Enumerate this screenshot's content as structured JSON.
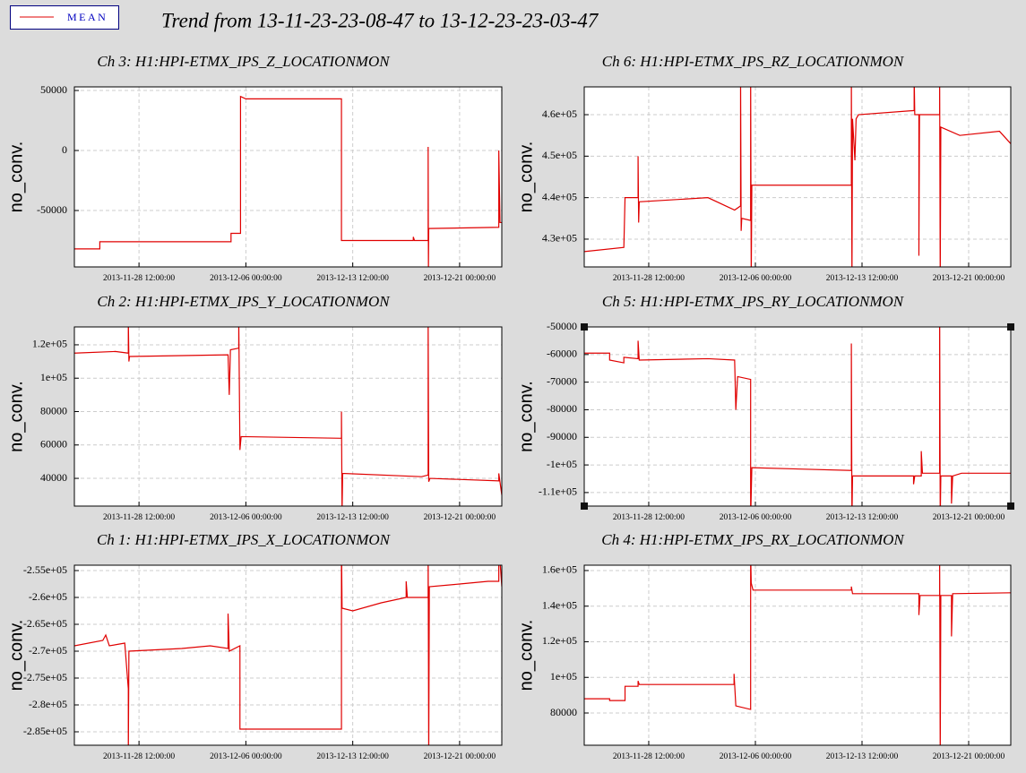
{
  "title": "Trend from 13-11-23-23-08-47 to 13-12-23-23-03-47",
  "chart_data": [
    {
      "type": "line",
      "title": "Ch 3: H1:HPI-ETMX_IPS_Z_LOCATIONMON",
      "ylabel": "no_conv.",
      "grid": true,
      "xlim": [
        "2013-11-23 23:08:47",
        "2013-12-23 23:03:47"
      ],
      "xticks": [
        "2013-11-28 12:00:00",
        "2013-12-06 00:00:00",
        "2013-12-13 12:00:00",
        "2013-12-21 00:00:00"
      ],
      "ylim": [
        -97000,
        53000
      ],
      "yticks": [
        50000,
        0,
        -50000
      ],
      "x": [
        "2013-11-23 23:08:47",
        "2013-11-25 18:00:00",
        "2013-11-25 18:00:00",
        "2013-12-04 23:00:00",
        "2013-12-04 23:00:00",
        "2013-12-05 15:00:00",
        "2013-12-05 15:00:00",
        "2013-12-06 00:00:00",
        "2013-12-12 17:00:00",
        "2013-12-12 17:00:00",
        "2013-12-17 18:00:00",
        "2013-12-17 18:00:00",
        "2013-12-17 20:00:00",
        "2013-12-18 19:00:00",
        "2013-12-18 19:00:00",
        "2013-12-18 19:30:00",
        "2013-12-18 20:00:00",
        "2013-12-23 18:00:00",
        "2013-12-23 18:00:00",
        "2013-12-23 20:00:00",
        "2013-12-23 23:03:47"
      ],
      "series": [
        {
          "name": "MEAN",
          "color": "#e00000",
          "values": [
            -82000,
            -82000,
            -76000,
            -76000,
            -69000,
            -69000,
            45000,
            43000,
            43000,
            -75000,
            -75000,
            -72000,
            -75000,
            -75000,
            3000,
            -100000,
            -65000,
            -64000,
            0,
            -60000,
            -60000
          ]
        }
      ]
    },
    {
      "type": "line",
      "title": "Ch 6: H1:HPI-ETMX_IPS_RZ_LOCATIONMON",
      "ylabel": "no_conv.",
      "grid": true,
      "xlim": [
        "2013-11-23 23:08:47",
        "2013-12-23 23:03:47"
      ],
      "xticks": [
        "2013-11-28 12:00:00",
        "2013-12-06 00:00:00",
        "2013-12-13 12:00:00",
        "2013-12-21 00:00:00"
      ],
      "ylim": [
        423300,
        466700
      ],
      "yticks": [
        {
          "value": 460000,
          "label": "4.6e+05"
        },
        {
          "value": 450000,
          "label": "4.5e+05"
        },
        {
          "value": 440000,
          "label": "4.4e+05"
        },
        {
          "value": 430000,
          "label": "4.3e+05"
        }
      ],
      "x": [
        "2013-11-23 23:08:47",
        "2013-11-26 18:00:00",
        "2013-11-26 20:00:00",
        "2013-11-27 18:00:00",
        "2013-11-27 18:00:00",
        "2013-11-27 19:00:00",
        "2013-11-27 20:00:00",
        "2013-12-02 16:00:00",
        "2013-12-04 13:00:00",
        "2013-12-04 23:00:00",
        "2013-12-04 23:00:00",
        "2013-12-05 00:00:00",
        "2013-12-05 01:00:00",
        "2013-12-05 16:00:00",
        "2013-12-05 16:00:00",
        "2013-12-05 17:00:00",
        "2013-12-05 18:00:00",
        "2013-12-12 18:00:00",
        "2013-12-12 18:00:00",
        "2013-12-12 19:00:00",
        "2013-12-12 20:00:00",
        "2013-12-13 00:00:00",
        "2013-12-13 02:00:00",
        "2013-12-13 06:00:00",
        "2013-12-17 04:00:00",
        "2013-12-17 04:00:00",
        "2013-12-17 05:00:00",
        "2013-12-17 12:00:00",
        "2013-12-17 12:00:00",
        "2013-12-17 13:00:00",
        "2013-12-18 23:00:00",
        "2013-12-18 23:00:00",
        "2013-12-19 00:00:00",
        "2013-12-19 01:00:00",
        "2013-12-20 09:00:00",
        "2013-12-23 04:00:00",
        "2013-12-23 23:03:47"
      ],
      "series": [
        {
          "name": "MEAN",
          "color": "#e00000",
          "values": [
            427000,
            428000,
            440000,
            440000,
            450000,
            434000,
            439000,
            440000,
            437000,
            438000,
            470000,
            432000,
            435000,
            434500,
            470000,
            420000,
            443000,
            443000,
            470000,
            420000,
            459000,
            449000,
            459000,
            460000,
            461000,
            470000,
            460000,
            460000,
            426000,
            460000,
            460000,
            470000,
            420000,
            457000,
            455000,
            456000,
            453000
          ]
        }
      ]
    },
    {
      "type": "line",
      "title": "Ch 2: H1:HPI-ETMX_IPS_Y_LOCATIONMON",
      "ylabel": "no_conv.",
      "grid": true,
      "xlim": [
        "2013-11-23 23:08:47",
        "2013-12-23 23:03:47"
      ],
      "xticks": [
        "2013-11-28 12:00:00",
        "2013-12-06 00:00:00",
        "2013-12-13 12:00:00",
        "2013-12-21 00:00:00"
      ],
      "ylim": [
        23400,
        130700
      ],
      "yticks": [
        {
          "value": 120000,
          "label": "1.2e+05"
        },
        {
          "value": 100000,
          "label": "1e+05"
        },
        80000,
        60000,
        40000
      ],
      "x": [
        "2013-11-23 23:08:47",
        "2013-11-26 20:00:00",
        "2013-11-27 18:00:00",
        "2013-11-27 18:00:00",
        "2013-11-27 19:00:00",
        "2013-11-27 20:00:00",
        "2013-12-04 18:00:00",
        "2013-12-04 20:00:00",
        "2013-12-04 22:00:00",
        "2013-12-05 12:00:00",
        "2013-12-05 12:00:00",
        "2013-12-05 14:00:00",
        "2013-12-05 16:00:00",
        "2013-12-12 17:00:00",
        "2013-12-12 17:00:00",
        "2013-12-12 18:00:00",
        "2013-12-12 19:00:00",
        "2013-12-18 08:00:00",
        "2013-12-18 19:00:00",
        "2013-12-18 19:00:00",
        "2013-12-18 20:00:00",
        "2013-12-18 22:00:00",
        "2013-12-23 18:00:00",
        "2013-12-23 18:00:00",
        "2013-12-23 23:03:47"
      ],
      "series": [
        {
          "name": "MEAN",
          "color": "#e00000",
          "values": [
            115000,
            116000,
            115000,
            135000,
            110000,
            113000,
            114000,
            90000,
            117000,
            118000,
            135000,
            57000,
            65000,
            64000,
            80000,
            20000,
            43000,
            41000,
            42000,
            135000,
            38000,
            40000,
            38500,
            43000,
            30000
          ]
        }
      ]
    },
    {
      "type": "line",
      "title": "Ch 5: H1:HPI-ETMX_IPS_RY_LOCATIONMON",
      "ylabel": "no_conv.",
      "grid": true,
      "xlim": [
        "2013-11-23 23:08:47",
        "2013-12-23 23:03:47"
      ],
      "xticks": [
        "2013-11-28 12:00:00",
        "2013-12-06 00:00:00",
        "2013-12-13 12:00:00",
        "2013-12-21 00:00:00"
      ],
      "ylim": [
        -114900,
        -50000
      ],
      "yticks": [
        -50000,
        -60000,
        -70000,
        -80000,
        -90000,
        {
          "value": -100000,
          "label": "-1e+05"
        },
        {
          "value": -110000,
          "label": "-1.1e+05"
        }
      ],
      "x": [
        "2013-11-23 23:08:47",
        "2013-11-25 18:00:00",
        "2013-11-25 18:00:00",
        "2013-11-26 18:00:00",
        "2013-11-26 18:00:00",
        "2013-11-27 18:00:00",
        "2013-11-27 18:00:00",
        "2013-11-27 20:00:00",
        "2013-12-02 16:00:00",
        "2013-12-04 13:00:00",
        "2013-12-04 15:00:00",
        "2013-12-04 18:00:00",
        "2013-12-05 16:00:00",
        "2013-12-05 16:00:00",
        "2013-12-05 18:00:00",
        "2013-12-12 18:00:00",
        "2013-12-12 18:00:00",
        "2013-12-12 19:00:00",
        "2013-12-12 20:00:00",
        "2013-12-17 03:00:00",
        "2013-12-17 03:00:00",
        "2013-12-17 05:00:00",
        "2013-12-17 16:00:00",
        "2013-12-17 16:00:00",
        "2013-12-17 18:00:00",
        "2013-12-18 23:00:00",
        "2013-12-18 23:00:00",
        "2013-12-19 00:00:00",
        "2013-12-19 01:00:00",
        "2013-12-19 19:00:00",
        "2013-12-19 19:00:00",
        "2013-12-19 21:00:00",
        "2013-12-20 12:00:00",
        "2013-12-23 23:03:47"
      ],
      "series": [
        {
          "name": "MEAN",
          "color": "#e00000",
          "values": [
            -59500,
            -59500,
            -62000,
            -63000,
            -61000,
            -61500,
            -55000,
            -62000,
            -61500,
            -62000,
            -80000,
            -68000,
            -69000,
            -120000,
            -101000,
            -102000,
            -56000,
            -120000,
            -104000,
            -104000,
            -107000,
            -104000,
            -104000,
            -95000,
            -103000,
            -103000,
            -40000,
            -120000,
            -104000,
            -104000,
            -114000,
            -104000,
            -103000,
            -103000
          ]
        }
      ]
    },
    {
      "type": "line",
      "title": "Ch 1: H1:HPI-ETMX_IPS_X_LOCATIONMON",
      "ylabel": "no_conv.",
      "grid": true,
      "xlim": [
        "2013-11-23 23:08:47",
        "2013-12-23 23:03:47"
      ],
      "xticks": [
        "2013-11-28 12:00:00",
        "2013-12-06 00:00:00",
        "2013-12-13 12:00:00",
        "2013-12-21 00:00:00"
      ],
      "ylim": [
        -287500,
        -254000
      ],
      "yticks": [
        {
          "value": -255000,
          "label": "-2.55e+05"
        },
        {
          "value": -260000,
          "label": "-2.6e+05"
        },
        {
          "value": -265000,
          "label": "-2.65e+05"
        },
        {
          "value": -270000,
          "label": "-2.7e+05"
        },
        {
          "value": -275000,
          "label": "-2.75e+05"
        },
        {
          "value": -280000,
          "label": "-2.8e+05"
        },
        {
          "value": -285000,
          "label": "-2.85e+05"
        }
      ],
      "x": [
        "2013-11-23 23:08:47",
        "2013-11-25 23:00:00",
        "2013-11-26 04:00:00",
        "2013-11-26 10:00:00",
        "2013-11-27 12:00:00",
        "2013-11-27 18:00:00",
        "2013-11-27 18:00:00",
        "2013-11-27 19:00:00",
        "2013-12-01 12:00:00",
        "2013-12-03 12:00:00",
        "2013-12-04 18:00:00",
        "2013-12-04 18:00:00",
        "2013-12-04 20:00:00",
        "2013-12-05 14:00:00",
        "2013-12-05 14:00:00",
        "2013-12-12 17:00:00",
        "2013-12-12 17:00:00",
        "2013-12-12 18:00:00",
        "2013-12-13 12:00:00",
        "2013-12-15 12:00:00",
        "2013-12-17 06:00:00",
        "2013-12-17 06:00:00",
        "2013-12-17 08:00:00",
        "2013-12-18 19:00:00",
        "2013-12-18 19:00:00",
        "2013-12-18 20:00:00",
        "2013-12-18 21:00:00",
        "2013-12-21 00:00:00",
        "2013-12-23 00:00:00",
        "2013-12-23 18:00:00",
        "2013-12-23 18:00:00",
        "2013-12-23 23:03:47"
      ],
      "series": [
        {
          "name": "MEAN",
          "color": "#e00000",
          "values": [
            -269000,
            -268000,
            -267000,
            -269000,
            -268500,
            -277000,
            -290000,
            -270000,
            -269500,
            -269000,
            -269500,
            -263000,
            -270000,
            -269000,
            -284500,
            -284500,
            -250000,
            -262000,
            -262500,
            -261000,
            -260000,
            -257000,
            -260000,
            -260000,
            -250000,
            -290000,
            -258000,
            -257500,
            -257000,
            -257000,
            -250000,
            -258000
          ]
        }
      ]
    },
    {
      "type": "line",
      "title": "Ch 4: H1:HPI-ETMX_IPS_RX_LOCATIONMON",
      "ylabel": "no_conv.",
      "grid": true,
      "xlim": [
        "2013-11-23 23:08:47",
        "2013-12-23 23:03:47"
      ],
      "xticks": [
        "2013-11-28 12:00:00",
        "2013-12-06 00:00:00",
        "2013-12-13 12:00:00",
        "2013-12-21 00:00:00"
      ],
      "ylim": [
        61900,
        163000
      ],
      "yticks": [
        {
          "value": 160000,
          "label": "1.6e+05"
        },
        {
          "value": 140000,
          "label": "1.4e+05"
        },
        {
          "value": 120000,
          "label": "1.2e+05"
        },
        {
          "value": 100000,
          "label": "1e+05"
        },
        80000
      ],
      "x": [
        "2013-11-23 23:08:47",
        "2013-11-25 18:00:00",
        "2013-11-25 18:00:00",
        "2013-11-26 20:00:00",
        "2013-11-26 20:00:00",
        "2013-11-27 18:00:00",
        "2013-11-27 18:00:00",
        "2013-11-27 20:00:00",
        "2013-12-04 12:00:00",
        "2013-12-04 12:00:00",
        "2013-12-04 15:00:00",
        "2013-12-05 16:00:00",
        "2013-12-05 16:00:00",
        "2013-12-05 17:00:00",
        "2013-12-05 20:00:00",
        "2013-12-12 18:00:00",
        "2013-12-12 18:00:00",
        "2013-12-12 20:00:00",
        "2013-12-17 12:00:00",
        "2013-12-17 12:00:00",
        "2013-12-17 14:00:00",
        "2013-12-18 23:00:00",
        "2013-12-18 23:00:00",
        "2013-12-19 00:00:00",
        "2013-12-19 01:00:00",
        "2013-12-19 19:00:00",
        "2013-12-19 19:00:00",
        "2013-12-19 21:00:00",
        "2013-12-23 23:03:47"
      ],
      "series": [
        {
          "name": "MEAN",
          "color": "#e00000",
          "values": [
            88000,
            88000,
            87000,
            87000,
            95000,
            95000,
            98000,
            96000,
            96000,
            102000,
            84000,
            82000,
            170000,
            153000,
            149000,
            149000,
            151000,
            147000,
            147000,
            135000,
            146000,
            146000,
            170000,
            55000,
            146000,
            146000,
            123000,
            147000,
            147500
          ]
        }
      ]
    }
  ]
}
